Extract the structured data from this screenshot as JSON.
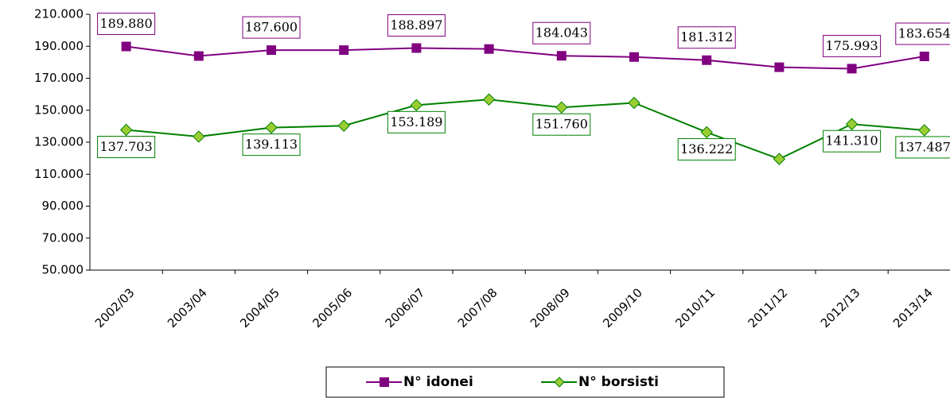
{
  "chart_data": {
    "type": "line",
    "categories": [
      "2002/03",
      "2003/04",
      "2004/05",
      "2005/06",
      "2006/07",
      "2007/08",
      "2008/09",
      "2009/10",
      "2010/11",
      "2011/12",
      "2012/13",
      "2013/14"
    ],
    "series": [
      {
        "name": "N° idonei",
        "color": "#800080",
        "values": [
          189880,
          183900,
          187600,
          187600,
          188897,
          188300,
          184043,
          183300,
          181312,
          176900,
          175993,
          183654
        ],
        "value_labels": [
          "189.880",
          null,
          "187.600",
          null,
          "188.897",
          null,
          "184.043",
          null,
          "181.312",
          null,
          "175.993",
          "183.654"
        ]
      },
      {
        "name": "N° borsisti",
        "color": "#008000",
        "values": [
          137703,
          133500,
          139113,
          140300,
          153189,
          156700,
          151760,
          154600,
          136222,
          119500,
          141310,
          137487
        ],
        "value_labels": [
          "137.703",
          null,
          "139.113",
          null,
          "153.189",
          null,
          "151.760",
          null,
          "136.222",
          null,
          "141.310",
          "137.487"
        ]
      }
    ],
    "ylim": [
      50000,
      210000
    ],
    "yticks": [
      {
        "value": 50000,
        "label": "50.000"
      },
      {
        "value": 70000,
        "label": "70.000"
      },
      {
        "value": 90000,
        "label": "90.000"
      },
      {
        "value": 110000,
        "label": "110.000"
      },
      {
        "value": 130000,
        "label": "130.000"
      },
      {
        "value": 150000,
        "label": "150.000"
      },
      {
        "value": 170000,
        "label": "170.000"
      },
      {
        "value": 190000,
        "label": "190.000"
      },
      {
        "value": 210000,
        "label": "210.000"
      }
    ],
    "legend": "bottom"
  }
}
